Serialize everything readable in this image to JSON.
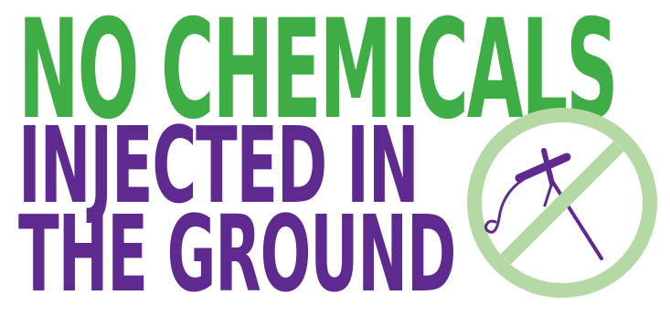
{
  "headline": {
    "line1": "NO CHEMICALS",
    "line2": "INJECTED IN",
    "line3": "THE GROUND"
  },
  "colors": {
    "green": "#3fad45",
    "purple": "#5f2a8f",
    "prohibition_green": "#b5d9a4"
  },
  "icon": {
    "name": "no-injection-icon"
  }
}
